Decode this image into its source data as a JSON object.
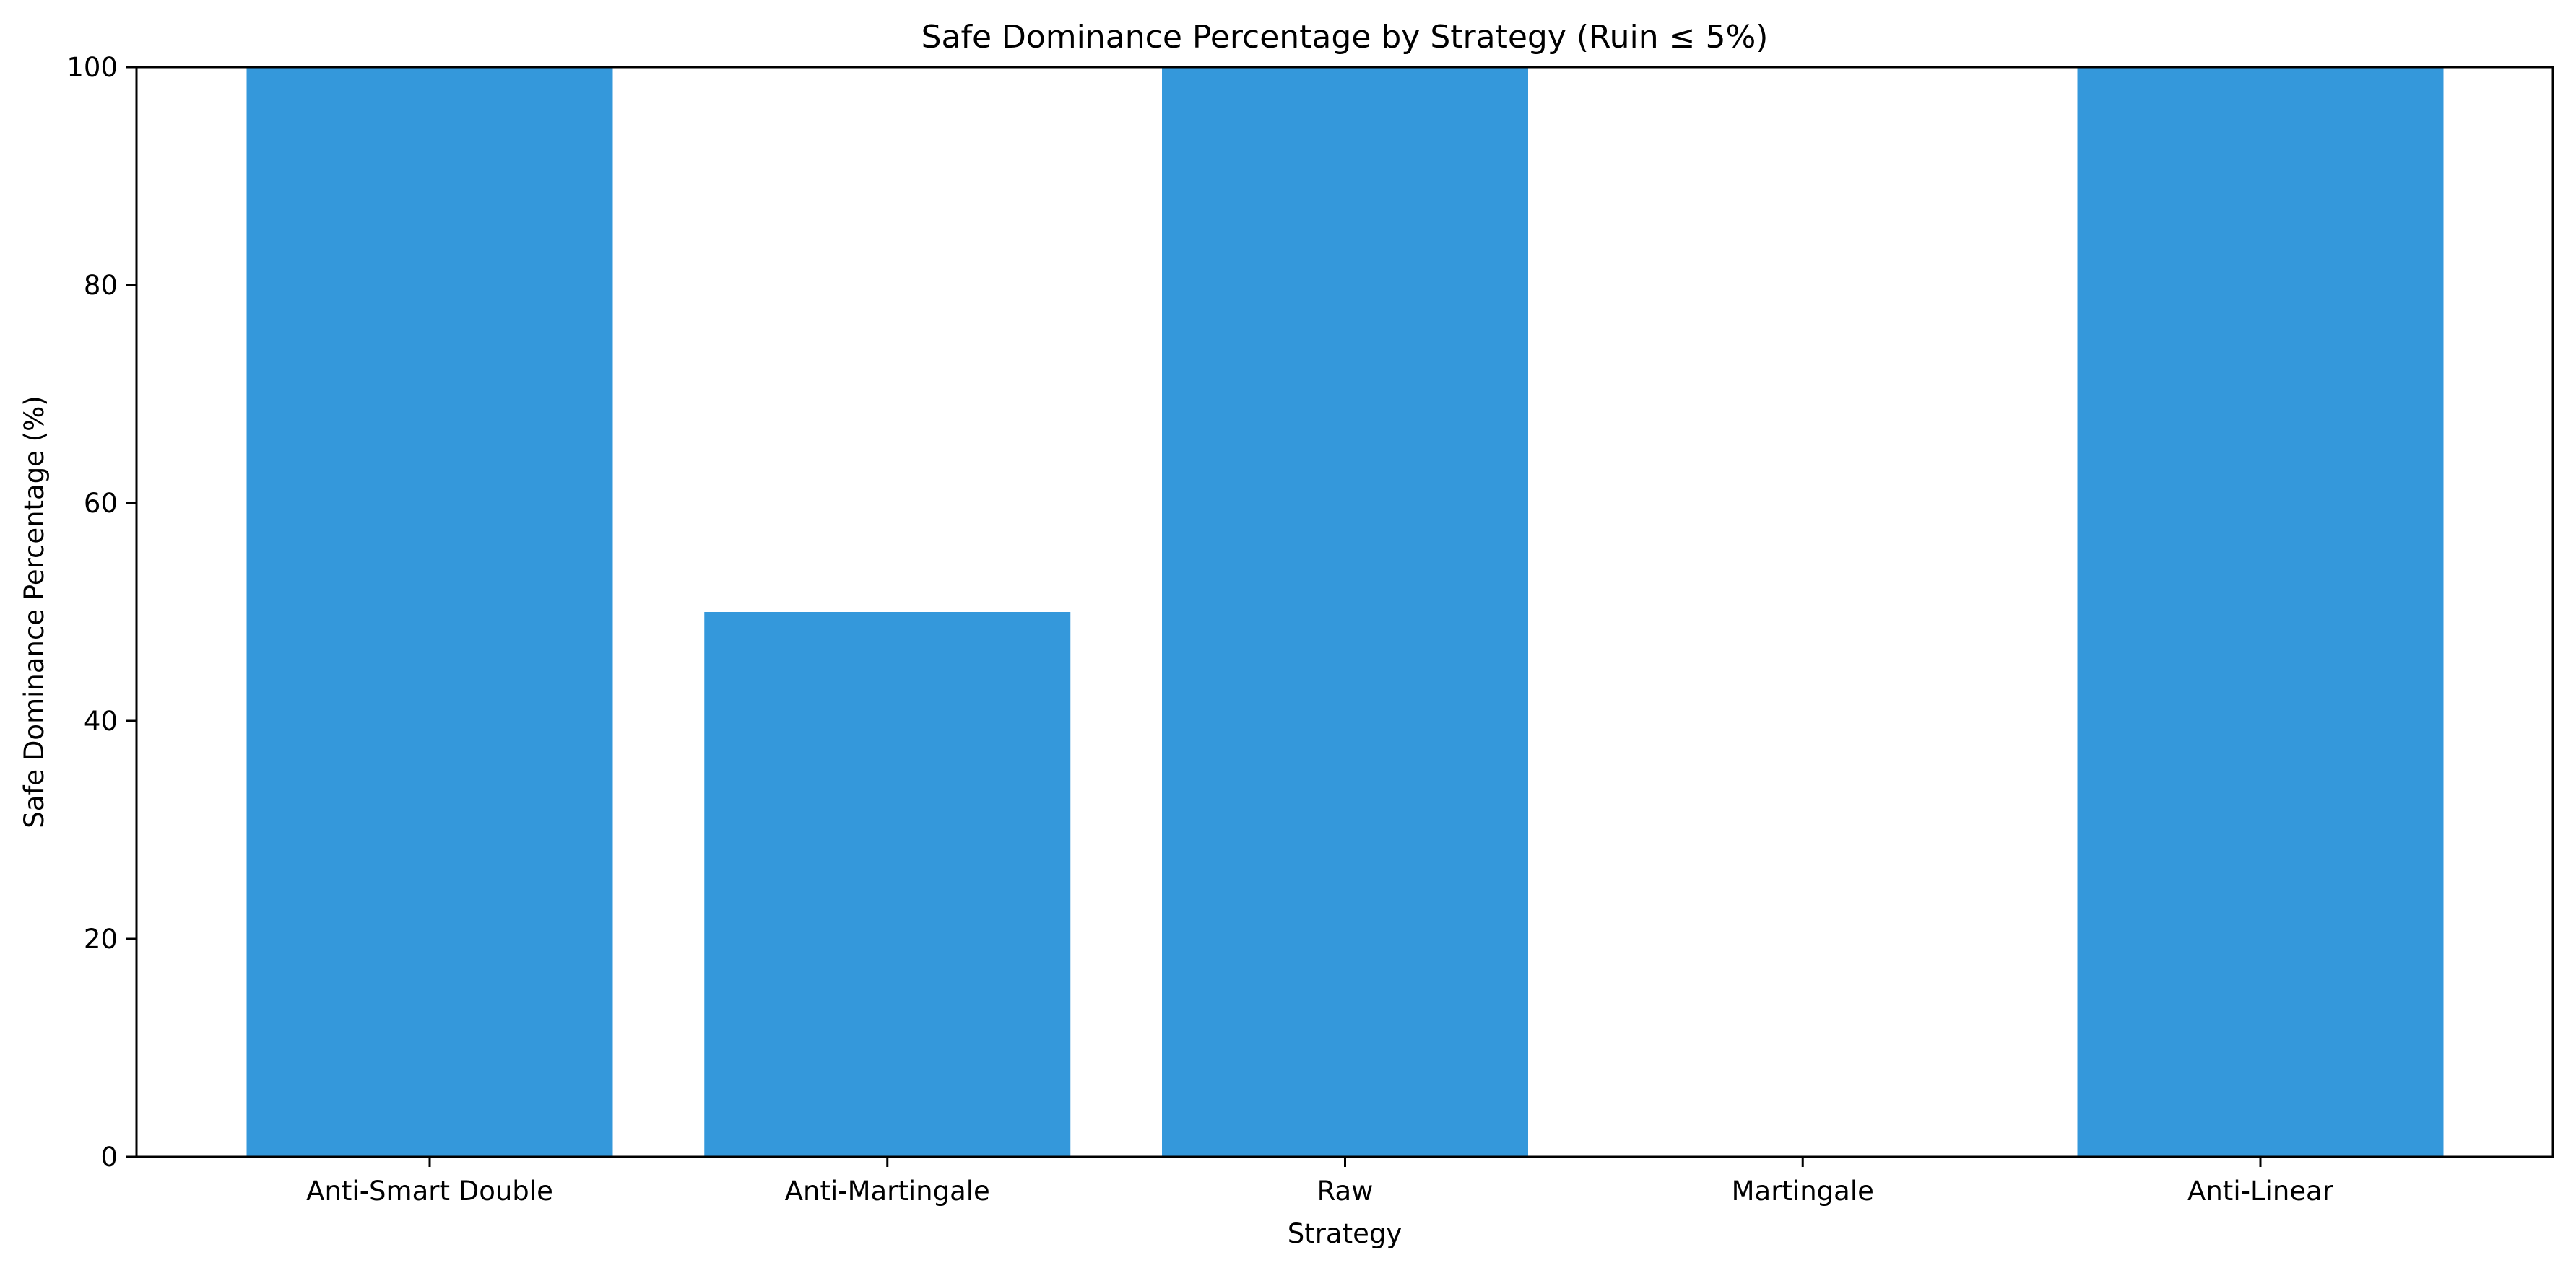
{
  "chart_data": {
    "type": "bar",
    "title": "Safe Dominance Percentage by Strategy (Ruin ≤ 5%)",
    "xlabel": "Strategy",
    "ylabel": "Safe Dominance Percentage (%)",
    "categories": [
      "Anti-Smart Double",
      "Anti-Martingale",
      "Raw",
      "Martingale",
      "Anti-Linear"
    ],
    "values": [
      100,
      50,
      100,
      0,
      100
    ],
    "ylim": [
      0,
      100
    ],
    "yticks": [
      0,
      20,
      40,
      60,
      80,
      100
    ],
    "bar_color": "#3498db",
    "grid": false,
    "legend": "none"
  }
}
